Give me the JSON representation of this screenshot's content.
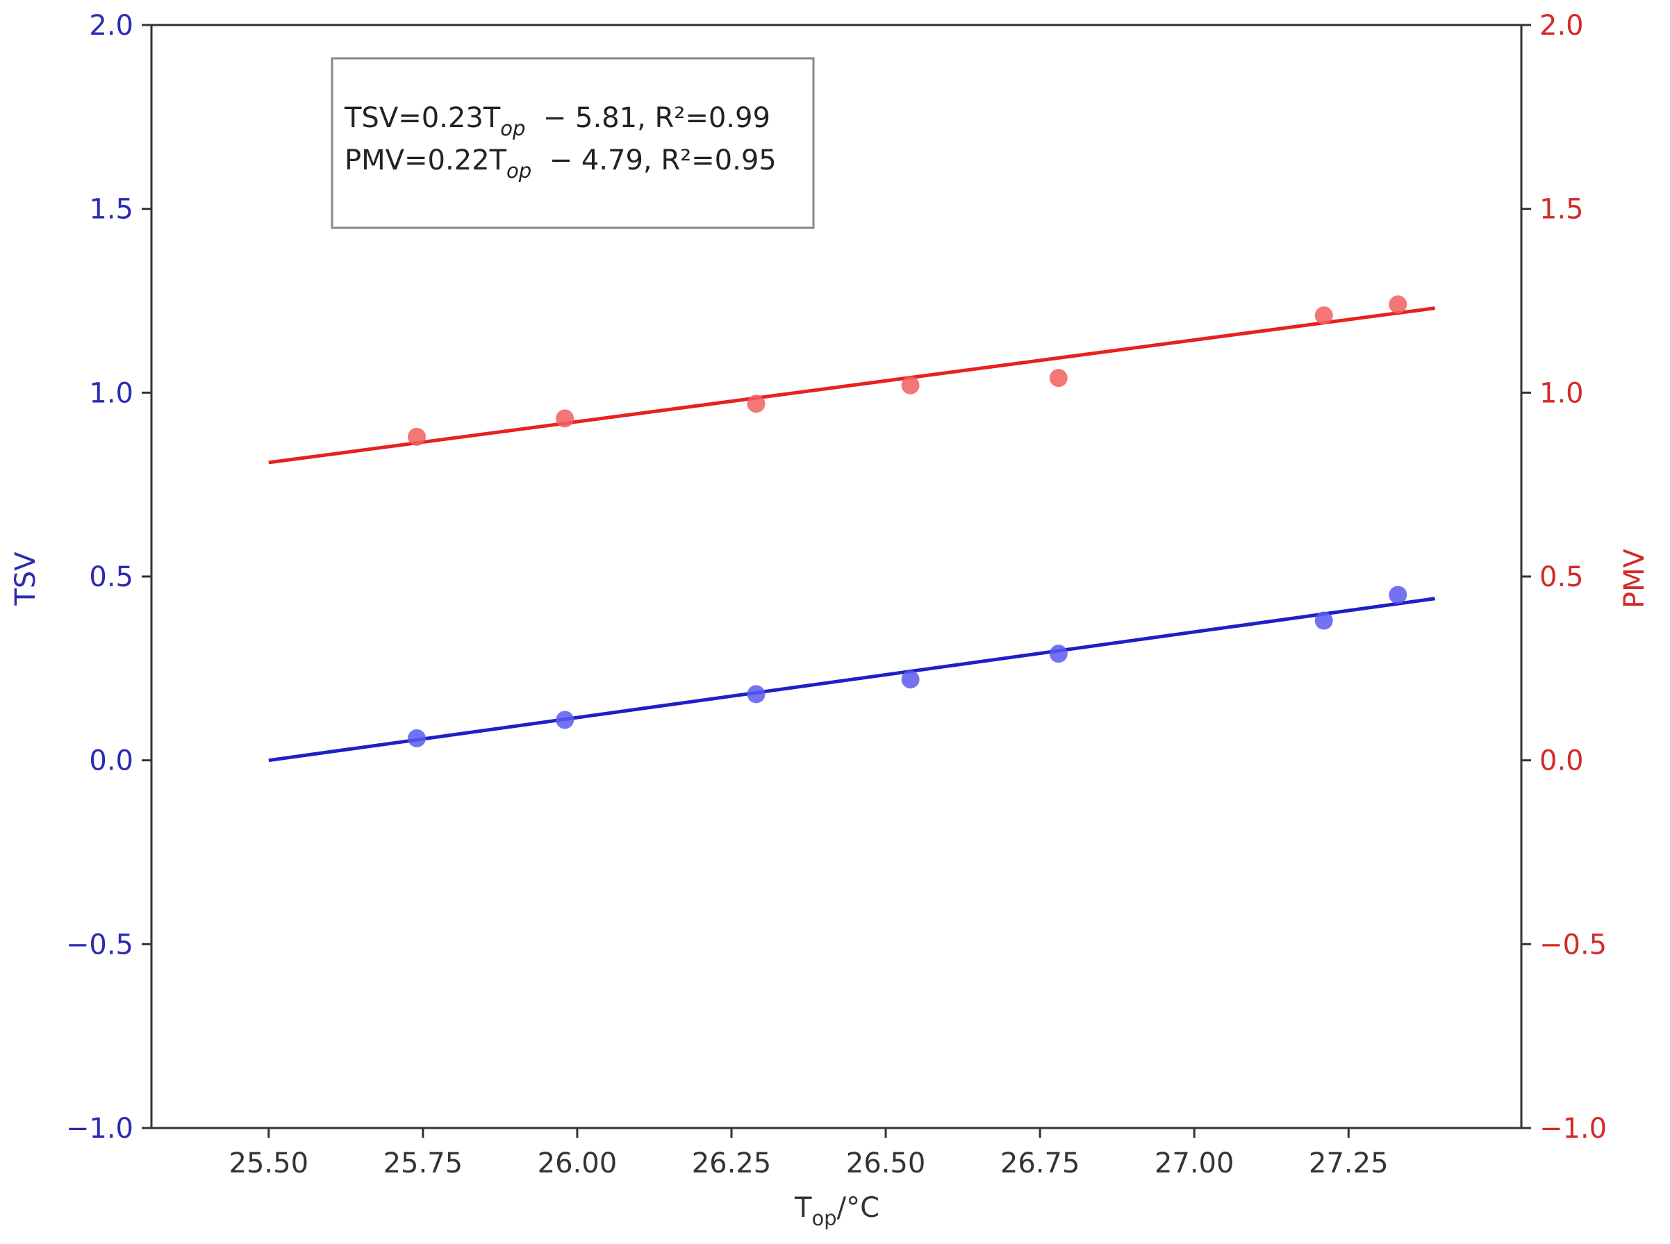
{
  "chart_data": {
    "type": "scatter",
    "xlabel_main": "T",
    "xlabel_sub": "op",
    "xlabel_unit": "/°C",
    "ylabel_left": "TSV",
    "ylabel_right": "PMV",
    "xlim": [
      25.31,
      27.53
    ],
    "ylim_left": [
      -1.0,
      2.0
    ],
    "ylim_right": [
      -1.0,
      2.0
    ],
    "x_ticks": [
      25.5,
      25.75,
      26.0,
      26.25,
      26.5,
      26.75,
      27.0,
      27.25
    ],
    "x_tick_labels": [
      "25.50",
      "25.75",
      "26.00",
      "26.25",
      "26.50",
      "26.75",
      "27.00",
      "27.25"
    ],
    "y_ticks": [
      -1.0,
      -0.5,
      0.0,
      0.5,
      1.0,
      1.5,
      2.0
    ],
    "y_tick_labels": [
      "−1.0",
      "−0.5",
      "0.0",
      "0.5",
      "1.0",
      "1.5",
      "2.0"
    ],
    "grid": false,
    "annotation": {
      "line1": {
        "prefix": "TSV=0.23T",
        "sub": "op",
        "suffix": "  − 5.81, R²=0.99"
      },
      "line2": {
        "prefix": "PMV=0.22T",
        "sub": "op",
        "suffix": "  − 4.79, R²=0.95"
      }
    },
    "series": [
      {
        "axis": "left",
        "color": "#1f1fc8",
        "marker_color": "#5a5af0",
        "points": [
          [
            25.74,
            0.06
          ],
          [
            25.98,
            0.11
          ],
          [
            26.29,
            0.18
          ],
          [
            26.54,
            0.22
          ],
          [
            26.78,
            0.29
          ],
          [
            27.21,
            0.38
          ],
          [
            27.33,
            0.45
          ]
        ],
        "fit": [
          [
            25.5,
            0.0
          ],
          [
            27.39,
            0.44
          ]
        ]
      },
      {
        "axis": "right",
        "color": "#e82020",
        "marker_color": "#f25f5f",
        "points": [
          [
            25.74,
            0.88
          ],
          [
            25.98,
            0.93
          ],
          [
            26.29,
            0.97
          ],
          [
            26.54,
            1.02
          ],
          [
            26.78,
            1.04
          ],
          [
            27.21,
            1.21
          ],
          [
            27.33,
            1.24
          ]
        ],
        "fit": [
          [
            25.5,
            0.81
          ],
          [
            27.39,
            1.23
          ]
        ]
      }
    ],
    "colors": {
      "left_axis": "#2b2bb0",
      "right_axis": "#d42a2a",
      "frame": "#333333",
      "annotation_border": "#888888"
    }
  }
}
